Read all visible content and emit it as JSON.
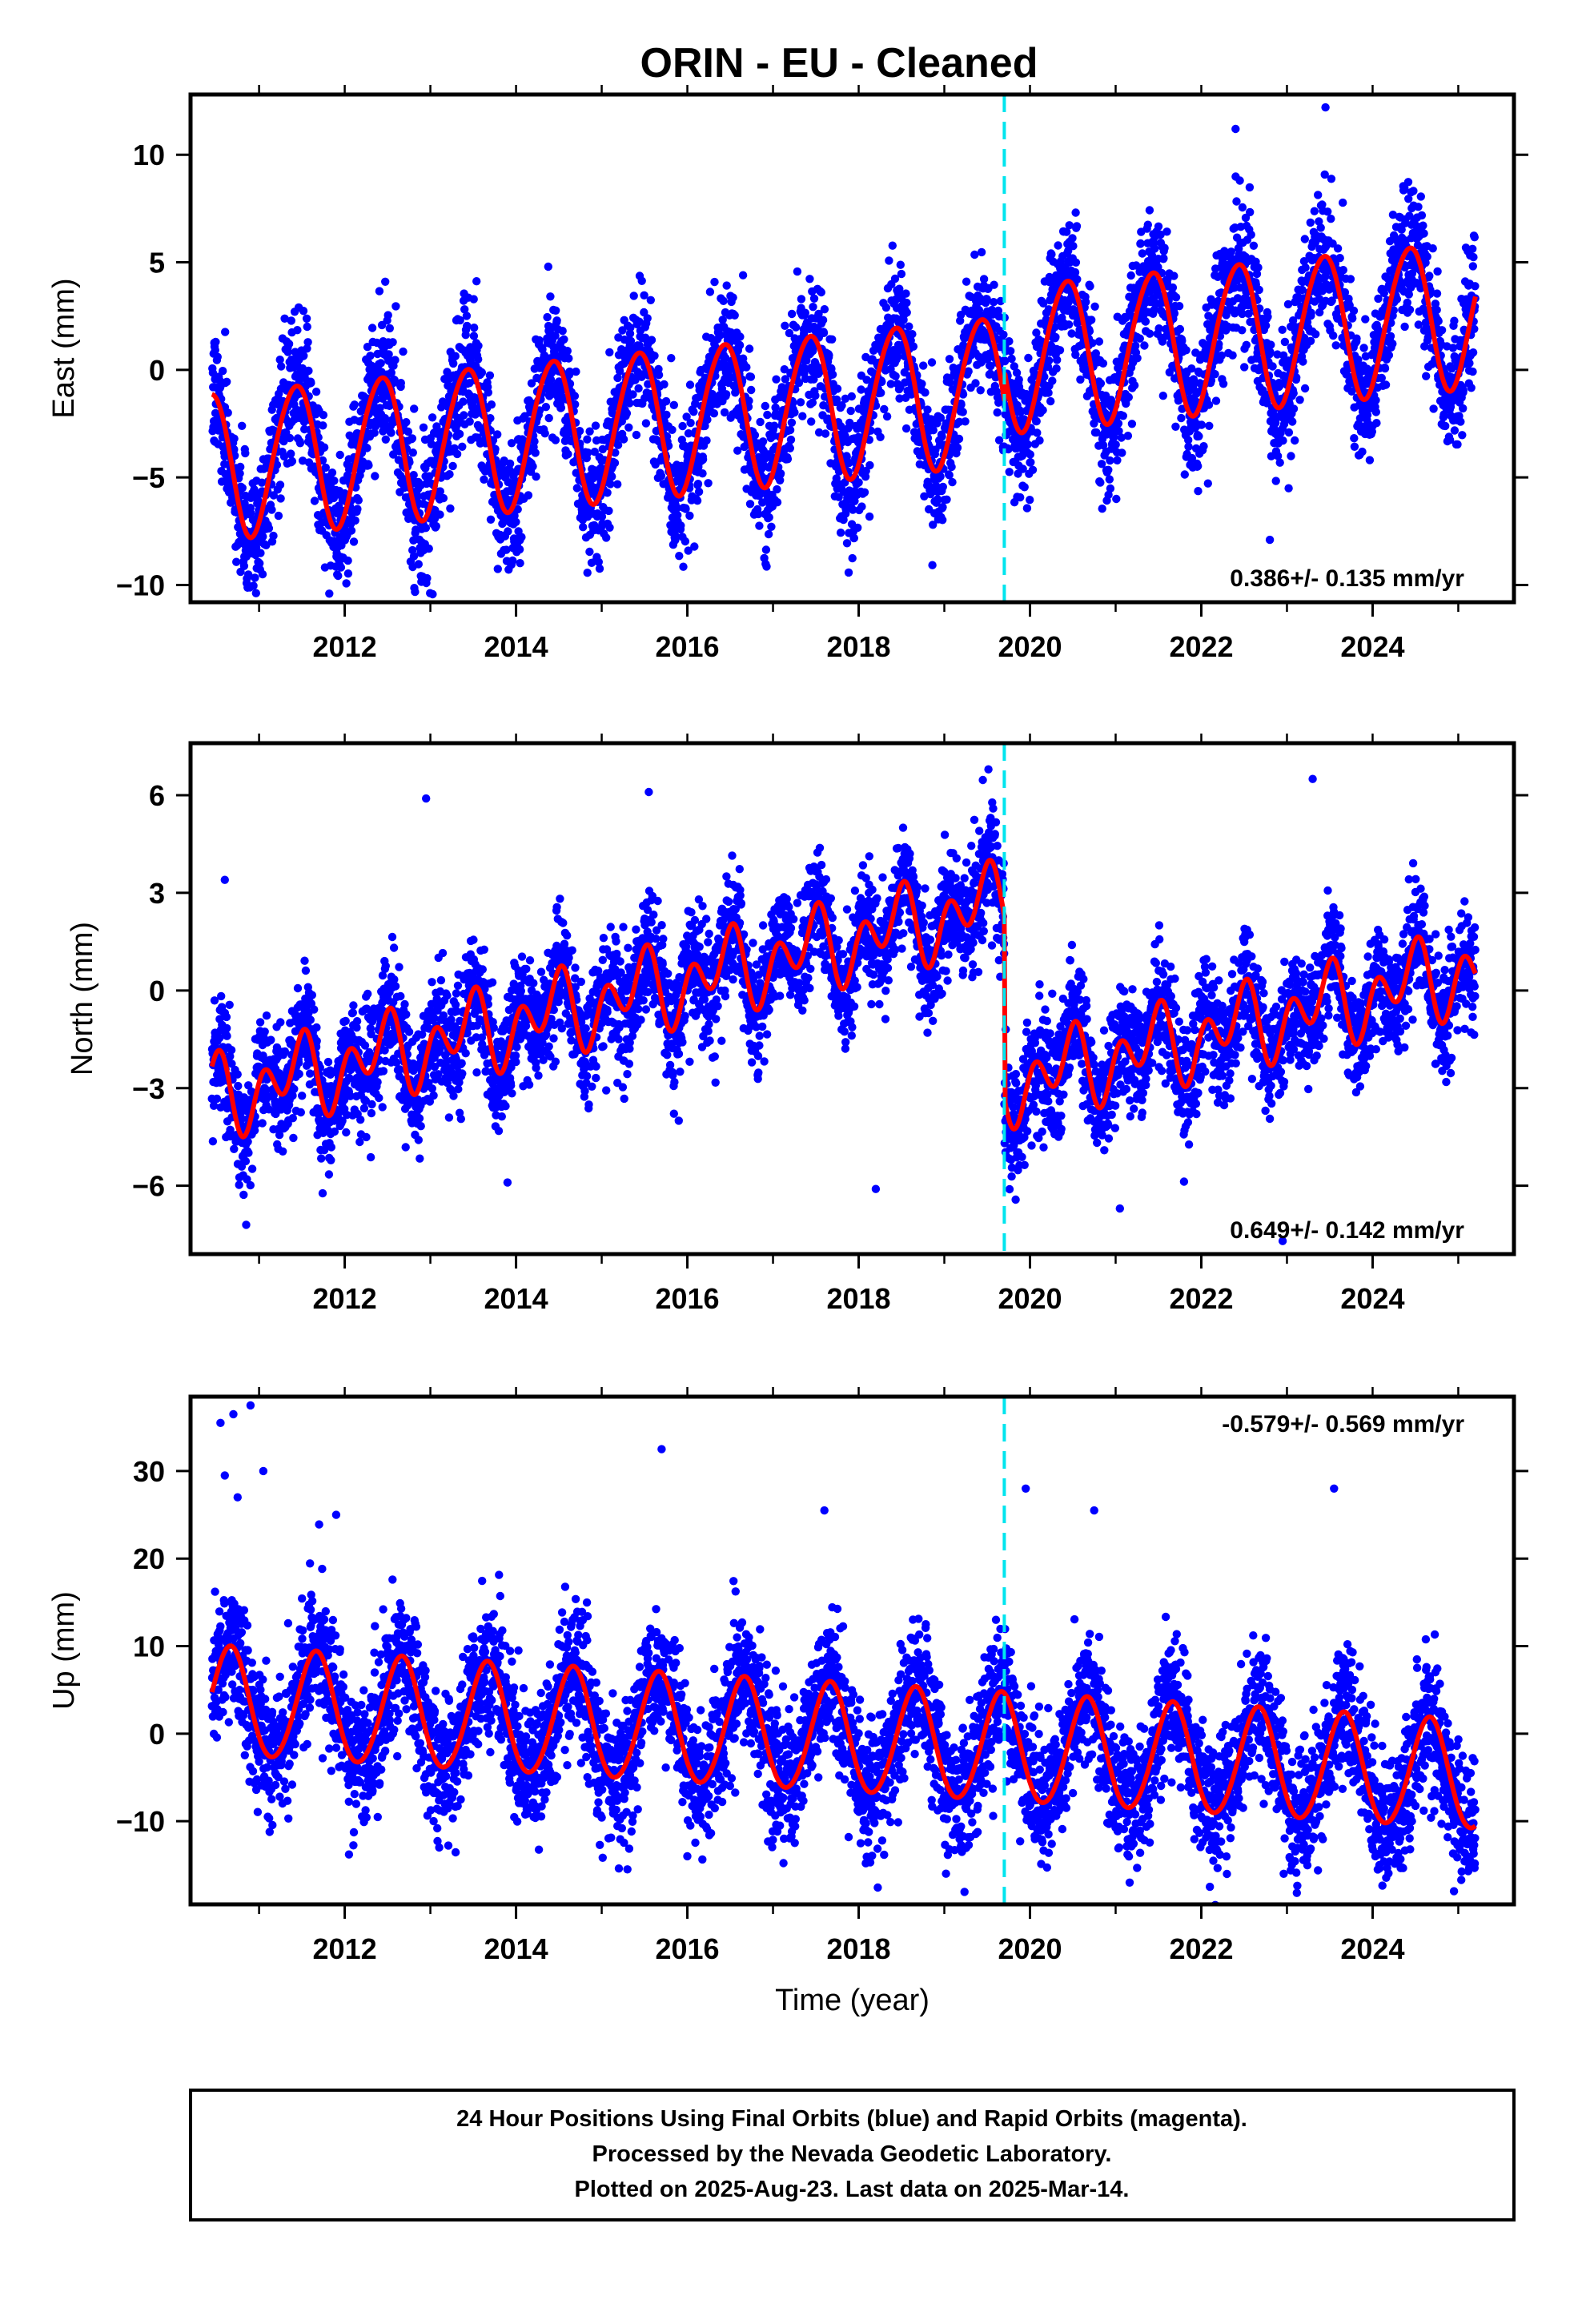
{
  "page": {
    "title": "ORIN  - EU - Cleaned",
    "footer_lines": [
      "24 Hour Positions Using Final Orbits (blue) and Rapid Orbits (magenta).",
      "Processed by the Nevada Geodetic Laboratory.",
      "Plotted on 2025-Aug-23. Last data on 2025-Mar-14."
    ]
  },
  "colors": {
    "points": "#0000ff",
    "fit": "#ff0000",
    "equipment_change": "#00e5ee",
    "frame": "#000000"
  },
  "chart_data": [
    {
      "type": "scatter",
      "ylabel": "East (mm)",
      "xlabel": "",
      "xlim": [
        2010.2,
        2025.65
      ],
      "ylim": [
        -10.8,
        12.8
      ],
      "xticks": [
        2012,
        2014,
        2016,
        2018,
        2020,
        2022,
        2024
      ],
      "yticks": [
        -10,
        -5,
        0,
        5,
        10
      ],
      "rate_label": "0.386+/- 0.135 mm/yr",
      "rate_position": "bottom-right",
      "offset_epoch": 2019.7,
      "fit_model": {
        "start": 2010.45,
        "end": 2025.2,
        "intercept_at_start": -4.4,
        "rate": 0.386,
        "annual_amplitude": 3.4,
        "annual_peak": 0.42,
        "semiannual_amplitude": 0.25,
        "semiannual_peak": 0.1,
        "step_epoch": 2019.7,
        "step": 1.4
      },
      "scatter_sigma": 1.5,
      "outliers": [
        [
          2011.82,
          -10.4
        ],
        [
          2022.85,
          -3.4
        ],
        [
          2022.8,
          -7.9
        ],
        [
          2023.45,
          12.2
        ],
        [
          2022.4,
          11.2
        ],
        [
          2016.65,
          4.4
        ],
        [
          2019.85,
          -5.9
        ]
      ]
    },
    {
      "type": "scatter",
      "ylabel": "North (mm)",
      "xlabel": "",
      "xlim": [
        2010.2,
        2025.65
      ],
      "ylim": [
        -8.1,
        7.6
      ],
      "xticks": [
        2012,
        2014,
        2016,
        2018,
        2020,
        2022,
        2024
      ],
      "yticks": [
        -6,
        -3,
        0,
        3,
        6
      ],
      "rate_label": "0.649+/- 0.142 mm/yr",
      "rate_position": "bottom-right",
      "offset_epoch": 2019.7,
      "fit_model": {
        "start": 2010.45,
        "end": 2025.2,
        "intercept_at_start": -3.3,
        "rate": 0.649,
        "annual_amplitude": 0.7,
        "annual_peak": 0.42,
        "semiannual_amplitude": 0.9,
        "semiannual_peak": 0.05,
        "step_epoch": 2019.7,
        "step": -5.6
      },
      "scatter_sigma": 0.9,
      "outliers": [
        [
          2010.6,
          3.4
        ],
        [
          2012.95,
          5.9
        ],
        [
          2015.55,
          6.1
        ],
        [
          2013.9,
          -5.9
        ],
        [
          2015.9,
          -4.0
        ],
        [
          2018.2,
          -6.1
        ],
        [
          2021.05,
          -6.7
        ],
        [
          2022.95,
          -7.7
        ],
        [
          2023.3,
          6.5
        ],
        [
          2010.85,
          -7.2
        ]
      ]
    },
    {
      "type": "scatter",
      "ylabel": "Up (mm)",
      "xlabel": "Time (year)",
      "xlim": [
        2010.2,
        2025.65
      ],
      "ylim": [
        -19.5,
        38.5
      ],
      "xticks": [
        2012,
        2014,
        2016,
        2018,
        2020,
        2022,
        2024
      ],
      "yticks": [
        -10,
        0,
        10,
        20,
        30
      ],
      "rate_label": "-0.579+/- 0.569 mm/yr",
      "rate_position": "top-right",
      "offset_epoch": 2019.7,
      "fit_model": {
        "start": 2010.45,
        "end": 2025.2,
        "intercept_at_start": 3.6,
        "rate": -0.579,
        "annual_amplitude": 6.2,
        "annual_peak": 0.66,
        "semiannual_amplitude": 0.4,
        "semiannual_peak": 0.2,
        "step_epoch": 2019.7,
        "step": 0
      },
      "scatter_sigma": 3.8,
      "outliers": [
        [
          2010.55,
          35.5
        ],
        [
          2010.7,
          36.5
        ],
        [
          2010.9,
          37.5
        ],
        [
          2011.05,
          30.0
        ],
        [
          2010.6,
          29.5
        ],
        [
          2010.75,
          27.0
        ],
        [
          2015.7,
          32.5
        ],
        [
          2011.9,
          25.0
        ],
        [
          2012.05,
          -13.8
        ],
        [
          2017.6,
          25.5
        ],
        [
          2019.95,
          28.0
        ],
        [
          2020.75,
          25.5
        ],
        [
          2023.55,
          28.0
        ],
        [
          2024.95,
          -18.0
        ],
        [
          2022.1,
          -17.5
        ],
        [
          2015.3,
          -15.5
        ]
      ]
    }
  ]
}
